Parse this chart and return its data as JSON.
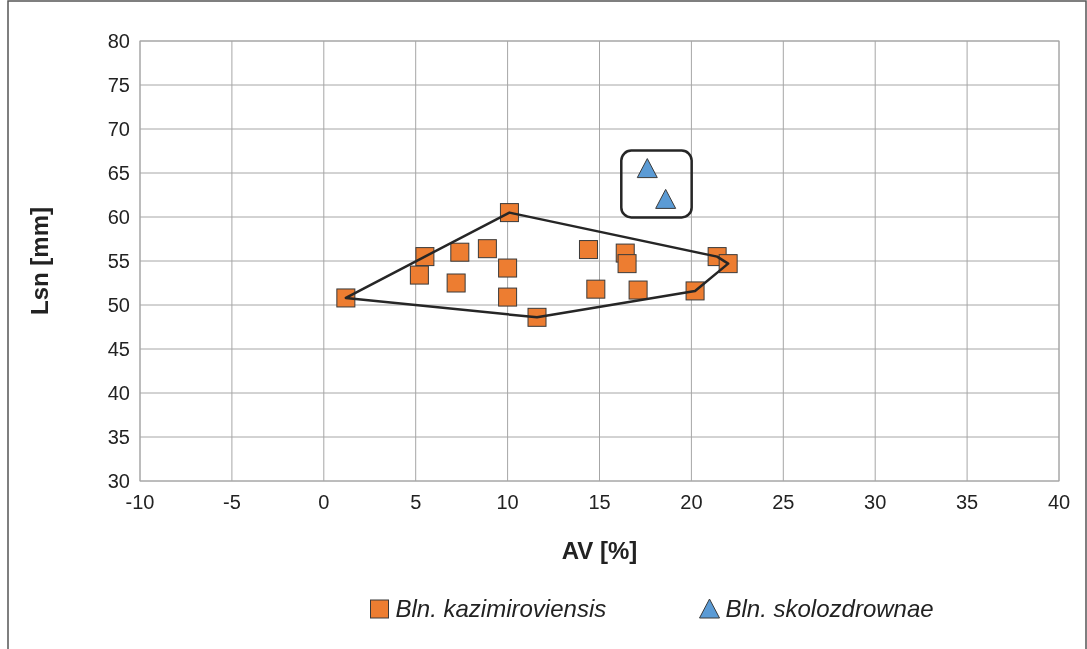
{
  "chart_data": {
    "type": "scatter",
    "xlabel": "AV [%]",
    "ylabel": "Lsn [mm]",
    "xlim": [
      -10,
      40
    ],
    "xticks": [
      -10,
      -5,
      0,
      5,
      10,
      15,
      20,
      25,
      30,
      35,
      40
    ],
    "ylim": [
      30,
      80
    ],
    "yticks": [
      30,
      35,
      40,
      45,
      50,
      55,
      60,
      65,
      70,
      75,
      80
    ],
    "grid": true,
    "legend": "bottom",
    "series": [
      {
        "name": "Bln. kazimiroviensis",
        "color": "#ed7d31",
        "marker": "square",
        "x": [
          1.2,
          5.5,
          5.2,
          7.4,
          7.2,
          8.9,
          10.1,
          10.0,
          10.0,
          11.6,
          14.4,
          14.8,
          16.4,
          16.5,
          17.1,
          20.2,
          21.4,
          22.0
        ],
        "values": [
          50.8,
          55.5,
          53.4,
          56.0,
          52.5,
          56.4,
          60.5,
          54.2,
          50.9,
          48.6,
          56.3,
          51.8,
          55.9,
          54.7,
          51.7,
          51.6,
          55.5,
          54.7
        ]
      },
      {
        "name": "Bln. skolozdrownae",
        "color": "#5b9bd5",
        "marker": "triangle",
        "x": [
          17.6,
          18.6
        ],
        "values": [
          65.5,
          62.0
        ]
      }
    ]
  }
}
